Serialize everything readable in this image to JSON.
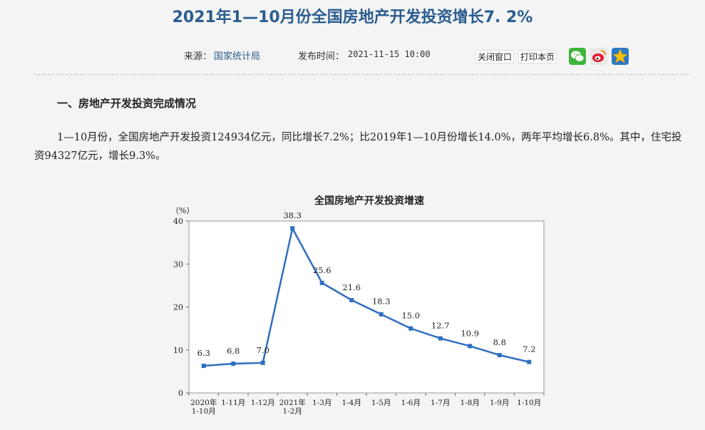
{
  "header": {
    "title": "2021年1—10月份全国房地产开发投资增长7. 2%",
    "source_label": "来源：",
    "source_value": "国家统计局",
    "publish_label": "发布时间：",
    "publish_value": "2021-11-15  10:00",
    "close_button": "关闭窗口",
    "print_button": "打印本页"
  },
  "share": {
    "icons": [
      "wechat-icon",
      "weibo-icon",
      "qzone-icon"
    ],
    "colors": {
      "wechat": "#3fb53a",
      "weibo": "#e6162d",
      "qzone": "#f6c10a"
    }
  },
  "section": {
    "heading": "一、房地产开发投资完成情况",
    "paragraph": "1—10月份，全国房地产开发投资124934亿元，同比增长7.2%；比2019年1—10月份增长14.0%，两年平均增长6.8%。其中，住宅投资94327亿元，增长9.3%。"
  },
  "chart_data": {
    "type": "line",
    "title": "全国房地产开发投资增速",
    "ylabel": "（%）",
    "ylim": [
      0,
      40
    ],
    "yticks": [
      0,
      10,
      20,
      30,
      40
    ],
    "categories": [
      [
        "2020年",
        "1-10月"
      ],
      [
        "1-11月"
      ],
      [
        "1-12月"
      ],
      [
        "2021年",
        "1-2月"
      ],
      [
        "1-3月"
      ],
      [
        "1-4月"
      ],
      [
        "1-5月"
      ],
      [
        "1-6月"
      ],
      [
        "1-7月"
      ],
      [
        "1-8月"
      ],
      [
        "1-9月"
      ],
      [
        "1-10月"
      ]
    ],
    "values": [
      6.3,
      6.8,
      7.0,
      38.3,
      25.6,
      21.6,
      18.3,
      15.0,
      12.7,
      10.9,
      8.8,
      7.2
    ],
    "labels": [
      "6.3",
      "6.8",
      "7.0",
      "38.3",
      "25.6",
      "21.6",
      "18.3",
      "15.0",
      "12.7",
      "10.9",
      "8.8",
      "7.2"
    ],
    "color": "#2f6fc0"
  }
}
